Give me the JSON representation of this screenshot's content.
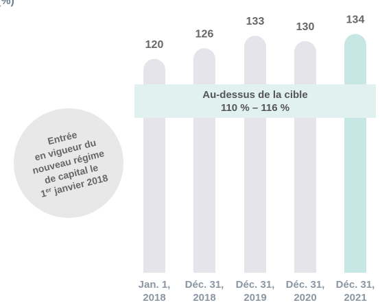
{
  "chart_data": {
    "type": "bar",
    "unit_label": "(%)",
    "categories": [
      [
        "Jan. 1,",
        "2018"
      ],
      [
        "Déc. 31,",
        "2018"
      ],
      [
        "Déc. 31,",
        "2019"
      ],
      [
        "Déc. 31,",
        "2020"
      ],
      [
        "Déc. 31,",
        "2021"
      ]
    ],
    "values": [
      120,
      126,
      133,
      130,
      134
    ],
    "colors": [
      "#e4e4ea",
      "#e4e4ea",
      "#e4e4ea",
      "#e4e4ea",
      "#c6e7e3"
    ],
    "ylim": [
      0,
      150
    ],
    "target_band": [
      "Au-dessus de la cible",
      "110 % – 116 %"
    ],
    "note_lines": [
      "Entrée",
      "en vigueur du",
      "nouveau régime",
      "de capital le"
    ],
    "note_last": {
      "num": "1",
      "sup": "er",
      "rest": " janvier 2018"
    }
  }
}
